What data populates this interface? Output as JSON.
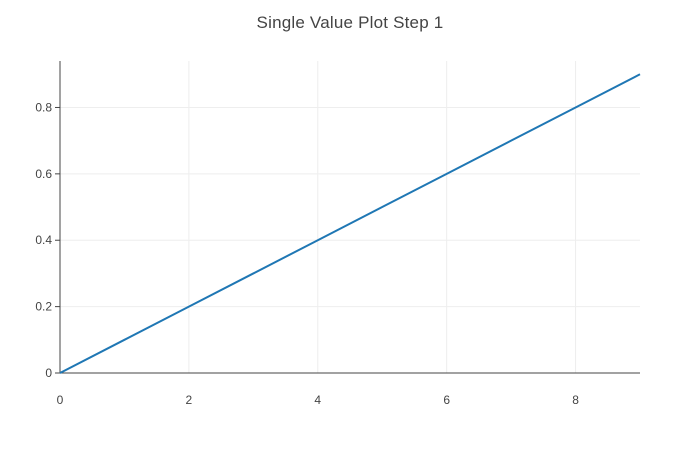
{
  "chart_data": {
    "type": "line",
    "title": "Single Value Plot Step 1",
    "xlabel": "",
    "ylabel": "",
    "xlim": [
      0,
      9
    ],
    "ylim": [
      0,
      0.94
    ],
    "x_ticks": [
      0,
      2,
      4,
      6,
      8
    ],
    "y_ticks": [
      0,
      0.2,
      0.4,
      0.6,
      0.8
    ],
    "x_tick_labels": [
      "0",
      "2",
      "4",
      "6",
      "8"
    ],
    "y_tick_labels": [
      "0",
      "0.2",
      "0.4",
      "0.6",
      "0.8"
    ],
    "grid": true,
    "legend": "none",
    "series": [
      {
        "color": "#1f77b4",
        "x": [
          0,
          1,
          2,
          3,
          4,
          5,
          6,
          7,
          8,
          9
        ],
        "y": [
          0,
          0.1,
          0.2,
          0.3,
          0.4,
          0.5,
          0.6,
          0.7,
          0.8,
          0.9
        ]
      }
    ]
  },
  "colors": {
    "grid": "#eeeeee",
    "axis": "#444444",
    "line": "#1f77b4"
  }
}
